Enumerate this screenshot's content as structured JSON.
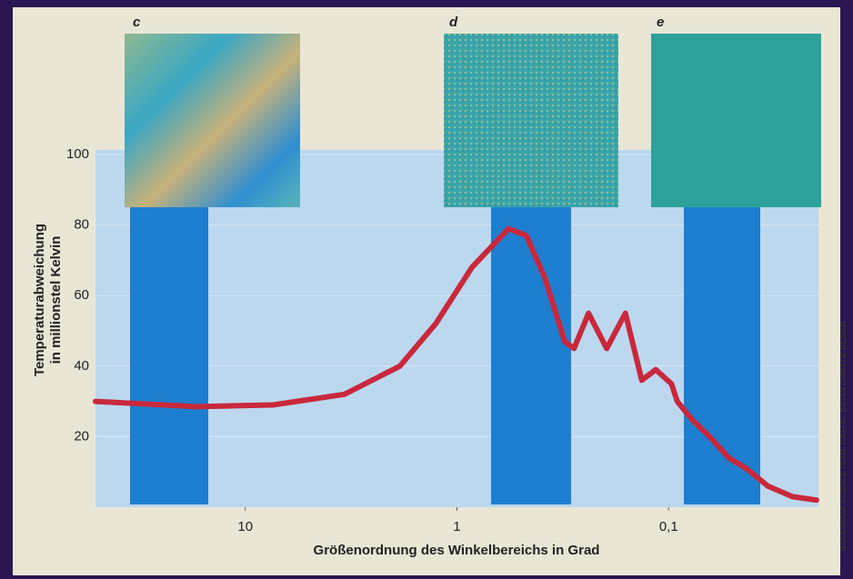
{
  "chart_data": {
    "type": "line",
    "x_label": "Größenordnung des Winkelbereichs in Grad",
    "y_label_lines": [
      "Temperaturabweichung",
      "in millionstel Kelvin"
    ],
    "panel_labels": [
      "c",
      "d",
      "e"
    ],
    "credit": "NASA/WMAP SCIENCE TEAM, GRAFIK: BRYAN CHRISTIE DESIGN",
    "x": [
      51,
      17,
      7.4,
      3.4,
      1.86,
      1.26,
      0.85,
      0.57,
      0.47,
      0.384,
      0.31,
      0.28,
      0.239,
      0.196,
      0.16,
      0.134,
      0.115,
      0.097,
      0.091,
      0.078,
      0.064,
      0.052,
      0.043,
      0.034,
      0.026,
      0.02
    ],
    "values": [
      30,
      28.5,
      29,
      32,
      40,
      52,
      68,
      79,
      77,
      65,
      47,
      45,
      55,
      45,
      55,
      36,
      39,
      35,
      30,
      25,
      20,
      14,
      11,
      6,
      3,
      2
    ],
    "color": "#c9283c",
    "xlog": true,
    "xlim": [
      51,
      0.0196
    ],
    "xticks": [
      10,
      1,
      {
        "value": 0.1,
        "label": "0,1"
      }
    ],
    "ylim": [
      0,
      100
    ],
    "yticks": [
      20,
      40,
      60,
      80,
      100
    ],
    "grid": true
  }
}
